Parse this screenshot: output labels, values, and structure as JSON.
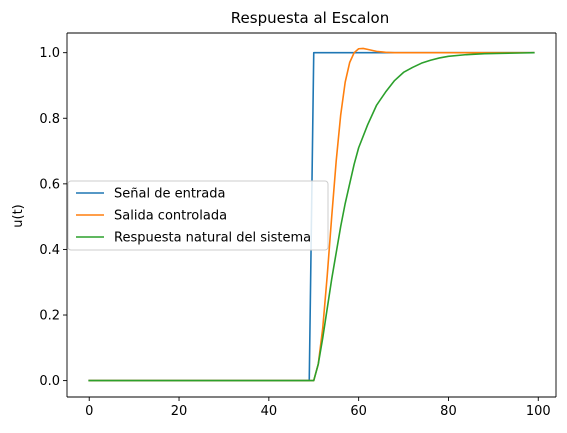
{
  "chart_data": {
    "type": "line",
    "title": "Respuesta al Escalon",
    "xlabel": "",
    "ylabel": "u(t)",
    "xlim": [
      -4.95,
      103.95
    ],
    "ylim": [
      -0.05,
      1.06
    ],
    "xticks": [
      0,
      20,
      40,
      60,
      80,
      100
    ],
    "xtick_labels": [
      "0",
      "20",
      "40",
      "60",
      "80",
      "100"
    ],
    "yticks": [
      0.0,
      0.2,
      0.4,
      0.6,
      0.8,
      1.0
    ],
    "ytick_labels": [
      "0.0",
      "0.2",
      "0.4",
      "0.6",
      "0.8",
      "1.0"
    ],
    "grid": false,
    "legend_position": "center-left",
    "series": [
      {
        "name": "Señal de entrada",
        "color": "#1f77b4",
        "x": [
          0,
          49,
          50,
          99
        ],
        "y": [
          0,
          0,
          1,
          1
        ]
      },
      {
        "name": "Salida controlada",
        "color": "#ff7f0e",
        "x": [
          0,
          49,
          50,
          51,
          52,
          53,
          54,
          55,
          56,
          57,
          58,
          59,
          60,
          61,
          62,
          63,
          64,
          66,
          68,
          70,
          75,
          80,
          90,
          99
        ],
        "y": [
          0,
          0,
          0,
          0.05,
          0.16,
          0.32,
          0.5,
          0.67,
          0.81,
          0.91,
          0.97,
          1.0,
          1.012,
          1.013,
          1.01,
          1.007,
          1.004,
          1.001,
          1.0,
          1.0,
          1.0,
          1.0,
          1.0,
          1.0
        ]
      },
      {
        "name": "Respuesta natural del sistema",
        "color": "#2ca02c",
        "x": [
          0,
          49,
          50,
          51,
          52,
          53,
          54,
          55,
          56,
          57,
          58,
          59,
          60,
          62,
          64,
          66,
          68,
          70,
          72,
          74,
          76,
          78,
          80,
          84,
          88,
          92,
          96,
          99
        ],
        "y": [
          0,
          0,
          0,
          0.05,
          0.13,
          0.22,
          0.31,
          0.39,
          0.47,
          0.54,
          0.6,
          0.66,
          0.71,
          0.78,
          0.84,
          0.88,
          0.915,
          0.94,
          0.955,
          0.968,
          0.977,
          0.984,
          0.989,
          0.994,
          0.997,
          0.998,
          0.999,
          1.0
        ]
      }
    ]
  }
}
